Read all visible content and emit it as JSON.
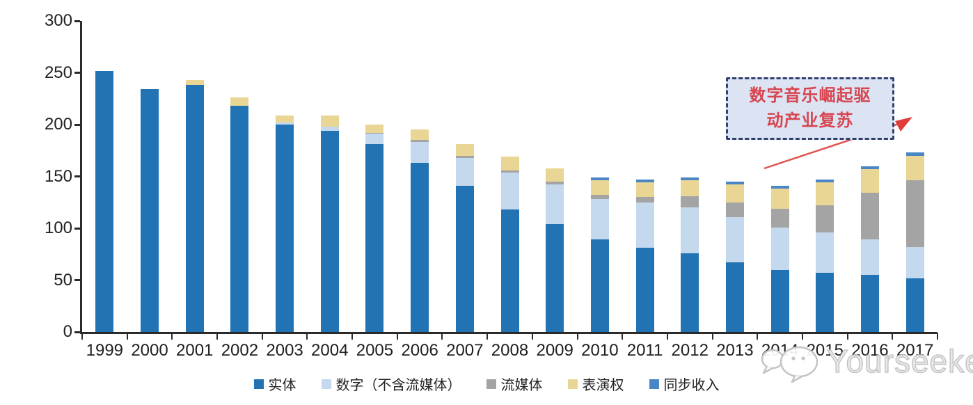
{
  "chart_data": {
    "type": "bar",
    "stacked": true,
    "grid": false,
    "legend_position": "bottom",
    "ylim": [
      0,
      300
    ],
    "yticks": [
      0,
      50,
      100,
      150,
      200,
      250,
      300
    ],
    "categories": [
      "1999",
      "2000",
      "2001",
      "2002",
      "2003",
      "2004",
      "2005",
      "2006",
      "2007",
      "2008",
      "2009",
      "2010",
      "2011",
      "2012",
      "2013",
      "2014",
      "2015",
      "2016",
      "2017"
    ],
    "series": [
      {
        "name": "实体",
        "color": "#2173b3",
        "values": [
          252,
          234,
          238,
          218,
          200,
          194,
          181,
          163,
          141,
          118,
          104,
          89,
          81,
          76,
          67,
          60,
          57,
          55,
          52
        ]
      },
      {
        "name": "数字（不含流媒体）",
        "color": "#c4d9ed",
        "values": [
          0,
          0,
          0,
          0,
          2,
          4,
          10,
          20,
          27,
          36,
          38,
          39,
          44,
          44,
          44,
          41,
          39,
          34,
          30
        ]
      },
      {
        "name": "流媒体",
        "color": "#a4a4a4",
        "values": [
          0,
          0,
          0,
          0,
          0,
          0,
          1,
          2,
          2,
          2,
          3,
          4,
          5,
          11,
          14,
          18,
          26,
          45,
          64
        ]
      },
      {
        "name": "表演权",
        "color": "#e9d695",
        "values": [
          0,
          0,
          5,
          8,
          7,
          11,
          8,
          10,
          11,
          13,
          13,
          14,
          14,
          15,
          17,
          19,
          22,
          23,
          24
        ]
      },
      {
        "name": "同步收入",
        "color": "#4a86c5",
        "values": [
          0,
          0,
          0,
          0,
          0,
          0,
          0,
          0,
          0,
          0,
          0,
          3,
          3,
          3,
          3,
          3,
          3,
          3,
          3
        ]
      }
    ]
  },
  "annotation": {
    "line1": "数字音乐崛起驱",
    "line2": "动产业复苏"
  },
  "watermark": {
    "text": "Yourseeker"
  },
  "colors": {
    "axis": "#2b2b2b",
    "annotation_border": "#32406e",
    "annotation_fill": "#dce4f4",
    "annotation_text": "#d8454f",
    "arrow": "#e05252",
    "watermark": "#c4c4c4"
  }
}
